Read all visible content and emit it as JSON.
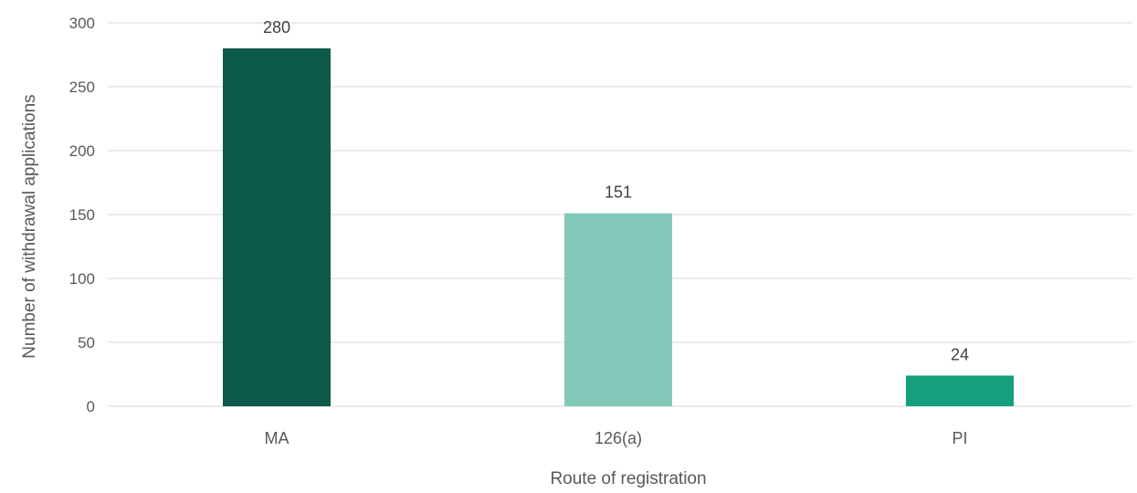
{
  "chart_data": {
    "type": "bar",
    "title": "",
    "xlabel": "Route of registration",
    "ylabel": "Number of withdrawal applications",
    "ylim": [
      0,
      300
    ],
    "yticks": [
      0,
      50,
      100,
      150,
      200,
      250,
      300
    ],
    "grid": true,
    "legend": "none",
    "categories": [
      "MA",
      "126(a)",
      "PI"
    ],
    "values": [
      280,
      151,
      24
    ],
    "data_labels": [
      "280",
      "151",
      "24"
    ],
    "colors": [
      "#0d5a4b",
      "#82c8b8",
      "#14a07c"
    ]
  }
}
